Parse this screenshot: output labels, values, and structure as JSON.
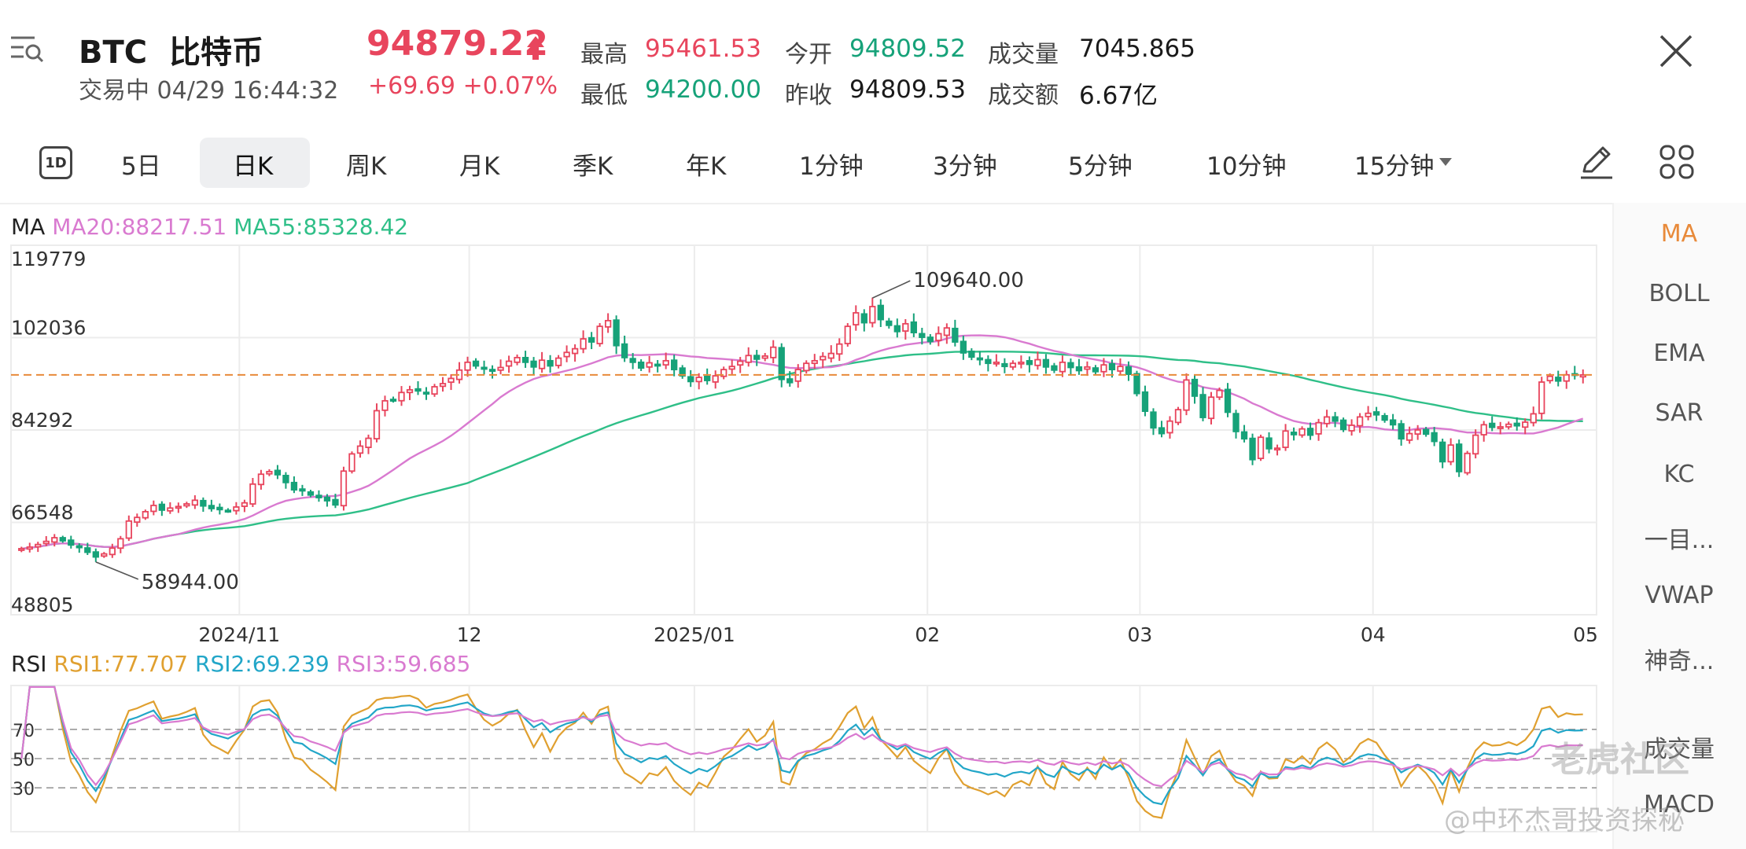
{
  "header": {
    "symbol": "BTC",
    "name": "比特币",
    "status": "交易中",
    "datetime": "04/29 16:44:32",
    "price": "94879.22",
    "change": "+69.69",
    "change_pct": "+0.07%",
    "high_label": "最高",
    "high": "95461.53",
    "low_label": "最低",
    "low": "94200.00",
    "open_label": "今开",
    "open": "94809.52",
    "prev_close_label": "昨收",
    "prev_close": "94809.53",
    "volume_label": "成交量",
    "volume": "7045.865",
    "amount_label": "成交额",
    "amount": "6.67亿"
  },
  "tabs": {
    "icon_1d": "1D",
    "items": [
      "5日",
      "日K",
      "周K",
      "月K",
      "季K",
      "年K",
      "1分钟",
      "3分钟",
      "5分钟",
      "10分钟",
      "15分钟"
    ],
    "active": "日K"
  },
  "indicators": [
    "MA",
    "BOLL",
    "EMA",
    "SAR",
    "KC",
    "一目...",
    "VWAP",
    "神奇...",
    "成交量",
    "MACD"
  ],
  "ma_legend": {
    "name": "MA",
    "ma20": "MA20:88217.51",
    "ma55": "MA55:85328.42"
  },
  "rsi_legend": {
    "name": "RSI",
    "rsi1": "RSI1:77.707",
    "rsi2": "RSI2:69.239",
    "rsi3": "RSI3:59.685"
  },
  "watermark": {
    "brand": "老虎社区",
    "author": "@中环杰哥投资探秘"
  },
  "colors": {
    "up": "#e8455d",
    "down": "#16a279",
    "ma20": "#d97ad0",
    "ma55": "#2fbf88",
    "rsi1": "#e0a030",
    "rsi2": "#22a6c8",
    "rsi3": "#d97ad0",
    "price_line": "#e88a3a",
    "accent": "#e88a3a"
  },
  "chart_data": [
    {
      "type": "candlestick",
      "title": "",
      "ylim": [
        48805,
        119779
      ],
      "y_ticks": [
        119779,
        102036,
        84292,
        66548,
        48805
      ],
      "x_tick_labels": [
        "2024/11",
        "12",
        "2025/01",
        "02",
        "03",
        "04",
        "05"
      ],
      "current_price": 94879.22,
      "annotations": [
        {
          "label": "109640.00",
          "value": 109640,
          "at": "2025/01 high"
        },
        {
          "label": "58944.00",
          "value": 58944,
          "at": "2024/10 low"
        }
      ],
      "close_series": [
        61500,
        61800,
        62300,
        62900,
        63600,
        63000,
        62200,
        61700,
        60800,
        59900,
        60500,
        61600,
        63400,
        66800,
        67500,
        68600,
        69800,
        68900,
        69300,
        69600,
        70100,
        70800,
        69700,
        69200,
        69000,
        68800,
        69500,
        70300,
        73900,
        75800,
        76300,
        75700,
        74200,
        72800,
        72600,
        71800,
        71300,
        70700,
        69900,
        76400,
        79700,
        81200,
        82700,
        88000,
        89900,
        90100,
        91500,
        92000,
        91800,
        91300,
        92600,
        93200,
        94200,
        95800,
        97300,
        96600,
        96000,
        95700,
        96300,
        97500,
        98200,
        97300,
        96400,
        97700,
        96600,
        98100,
        99200,
        99900,
        101800,
        101200,
        104200,
        105300,
        100500,
        98200,
        97300,
        96200,
        97200,
        96900,
        97600,
        95900,
        94700,
        93600,
        94400,
        93800,
        94700,
        95900,
        96500,
        97500,
        98600,
        97900,
        98500,
        100200,
        94000,
        93400,
        95900,
        97100,
        97600,
        98400,
        99000,
        100800,
        104200,
        106800,
        104900,
        108000,
        105500,
        104400,
        103200,
        104700,
        103000,
        102100,
        101300,
        102800,
        103900,
        101200,
        99100,
        98300,
        97800,
        97100,
        97300,
        96500,
        97100,
        97300,
        96900,
        97800,
        96400,
        95800,
        97300,
        96300,
        95700,
        96400,
        95500,
        96800,
        95900,
        96500,
        95000,
        91300,
        87900,
        84700,
        83600,
        86000,
        88200,
        93900,
        90800,
        86700,
        90600,
        91900,
        87700,
        84000,
        82600,
        78600,
        82900,
        80700,
        80800,
        84100,
        83400,
        84500,
        83300,
        85700,
        86800,
        86000,
        84400,
        85200,
        86800,
        87500,
        87200,
        86200,
        85300,
        82600,
        83600,
        84300,
        83500,
        82100,
        78200,
        81400,
        76300,
        79800,
        83300,
        85300,
        84800,
        84900,
        85400,
        85100,
        85800,
        87400,
        93500,
        94600,
        93700,
        94900,
        94800,
        94879
      ],
      "series": [
        {
          "name": "MA20",
          "value": 88217.51
        },
        {
          "name": "MA55",
          "value": 85328.42
        }
      ]
    },
    {
      "type": "line",
      "title": "",
      "ylim": [
        0,
        100
      ],
      "y_ticks": [
        70,
        50,
        30
      ],
      "series": [
        {
          "name": "RSI1",
          "value": 77.707
        },
        {
          "name": "RSI2",
          "value": 69.239
        },
        {
          "name": "RSI3",
          "value": 59.685
        }
      ]
    }
  ]
}
